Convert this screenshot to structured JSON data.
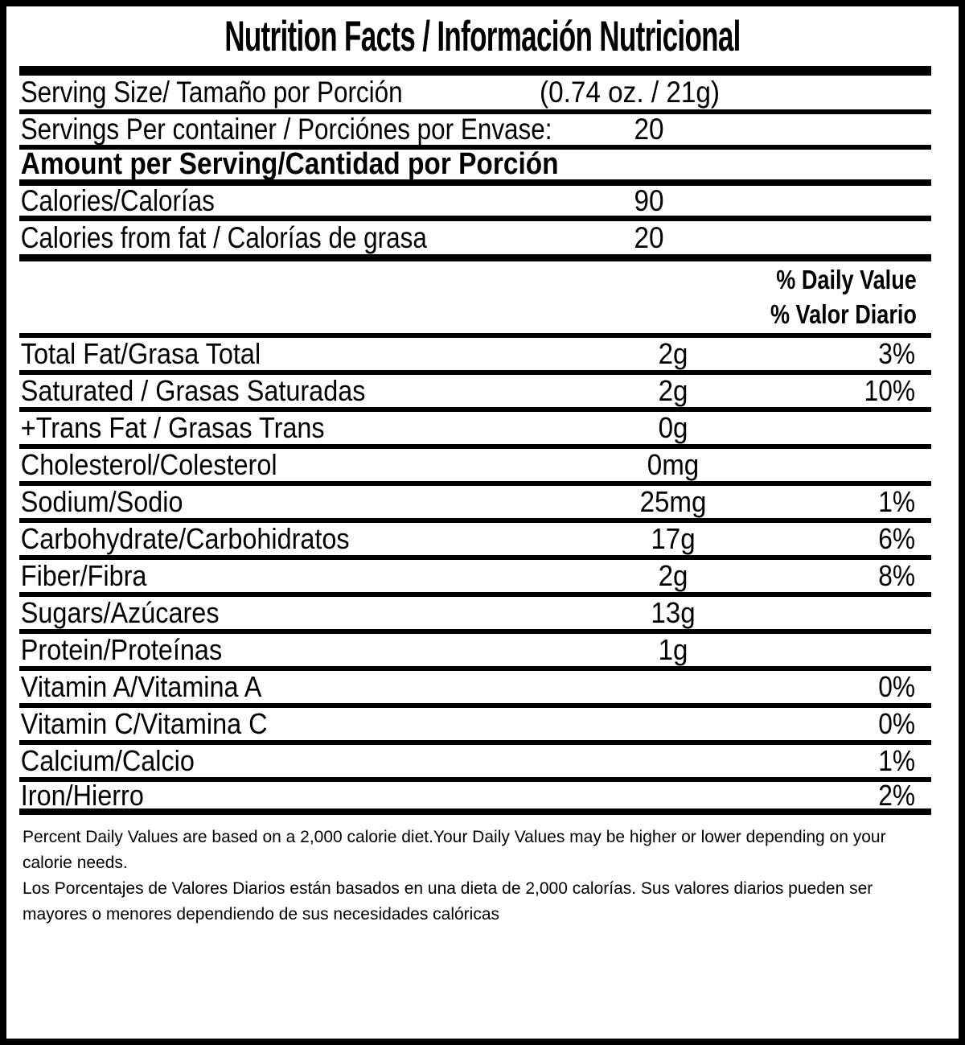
{
  "colors": {
    "ink": "#000000",
    "paper": "#ffffff"
  },
  "title": "Nutrition Facts / Información Nutricional",
  "serving_size": {
    "label": "Serving Size/ Tamaño por Porción",
    "value": "(0.74 oz. / 21g)"
  },
  "servings_per_container": {
    "label": "Servings Per container / Porciónes por Envase:",
    "value": "20"
  },
  "amount_per_serving_heading": "Amount per Serving/Cantidad por Porción",
  "calories": {
    "label": "Calories/Calorías",
    "value": "90"
  },
  "calories_from_fat": {
    "label": "Calories from fat / Calorías de grasa",
    "value": "20"
  },
  "daily_value_heading": {
    "en": "% Daily Value",
    "es": "% Valor Diario"
  },
  "nutrients": [
    {
      "label": "Total Fat/Grasa Total",
      "amount": "2g",
      "dv": "3%"
    },
    {
      "label": "Saturated / Grasas Saturadas",
      "amount": "2g",
      "dv": "10%"
    },
    {
      "label": "+Trans Fat / Grasas Trans",
      "amount": "0g",
      "dv": ""
    },
    {
      "label": "Cholesterol/Colesterol",
      "amount": "0mg",
      "dv": ""
    },
    {
      "label": "Sodium/Sodio",
      "amount": "25mg",
      "dv": "1%"
    },
    {
      "label": "Carbohydrate/Carbohidratos",
      "amount": "17g",
      "dv": "6%"
    },
    {
      "label": "Fiber/Fibra",
      "amount": "2g",
      "dv": "8%"
    },
    {
      "label": "Sugars/Azúcares",
      "amount": "13g",
      "dv": ""
    },
    {
      "label": "Protein/Proteínas",
      "amount": "1g",
      "dv": ""
    },
    {
      "label": "Vitamin A/Vitamina A",
      "amount": "",
      "dv": "0%"
    },
    {
      "label": "Vitamin C/Vitamina C",
      "amount": "",
      "dv": "0%"
    },
    {
      "label": "Calcium/Calcio",
      "amount": "",
      "dv": "1%"
    },
    {
      "label": "Iron/Hierro",
      "amount": "",
      "dv": "2%"
    }
  ],
  "footnote": {
    "en": "Percent Daily Values are based on a 2,000 calorie diet.Your Daily Values may be higher or lower depending on your calorie needs.",
    "es": "Los Porcentajes de Valores Diarios están basados en una dieta de 2,000 calorías. Sus valores diarios pueden ser mayores o menores dependiendo de sus necesidades calóricas"
  }
}
